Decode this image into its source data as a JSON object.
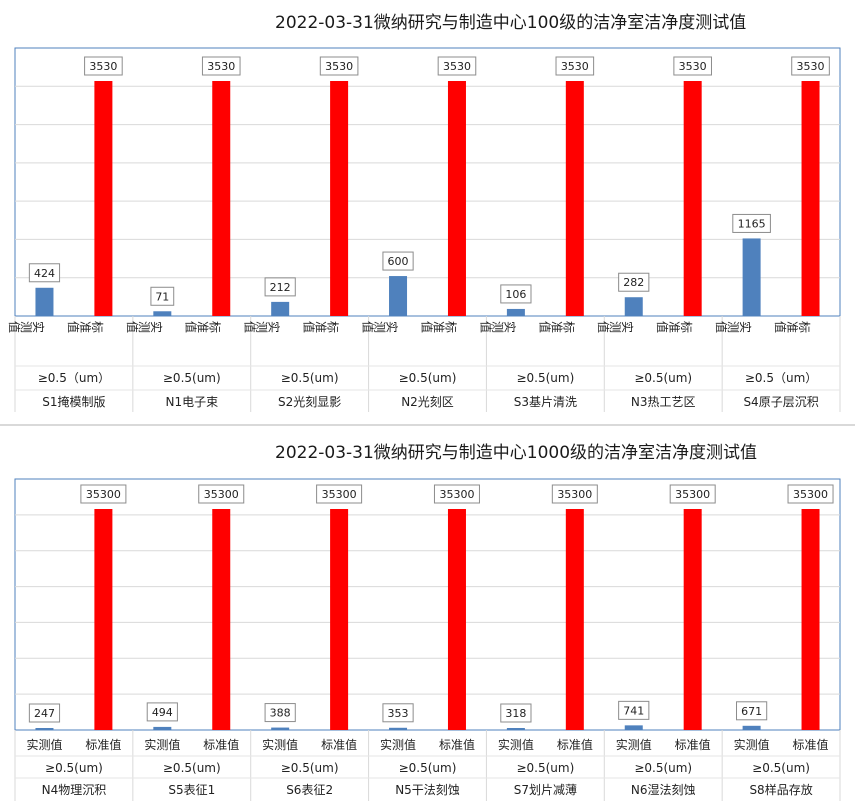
{
  "chart_data": [
    {
      "type": "bar",
      "title": "2022-03-31微纳研究与制造中心100级的洁净室洁净度测试值",
      "series_labels": [
        "实测值",
        "标准值"
      ],
      "ylim": [
        0,
        3530
      ],
      "grid": true,
      "groups": [
        {
          "name": "S1掩模制版",
          "size": "≥0.5（um）",
          "measured": 424,
          "standard": 3530
        },
        {
          "name": "N1电子束",
          "size": "≥0.5(um)",
          "measured": 71,
          "standard": 3530
        },
        {
          "name": "S2光刻显影",
          "size": "≥0.5(um)",
          "measured": 212,
          "standard": 3530
        },
        {
          "name": "N2光刻区",
          "size": "≥0.5(um)",
          "measured": 600,
          "standard": 3530
        },
        {
          "name": "S3基片清洗",
          "size": "≥0.5(um)",
          "measured": 106,
          "standard": 3530
        },
        {
          "name": "N3热工艺区",
          "size": "≥0.5(um)",
          "measured": 282,
          "standard": 3530
        },
        {
          "name": "S4原子层沉积",
          "size": "≥0.5（um）",
          "measured": 1165,
          "standard": 3530
        }
      ],
      "colors": {
        "measured": "#4f81bd",
        "standard": "#ff0000"
      }
    },
    {
      "type": "bar",
      "title": "2022-03-31微纳研究与制造中心1000级的洁净室洁净度测试值",
      "series_labels": [
        "实测值",
        "标准值"
      ],
      "ylim": [
        0,
        35300
      ],
      "grid": true,
      "groups": [
        {
          "name": "N4物理沉积",
          "size": "≥0.5(um)",
          "measured": 247,
          "standard": 35300
        },
        {
          "name": "S5表征1",
          "size": "≥0.5(um)",
          "measured": 494,
          "standard": 35300
        },
        {
          "name": "S6表征2",
          "size": "≥0.5(um)",
          "measured": 388,
          "standard": 35300
        },
        {
          "name": "N5干法刻蚀",
          "size": "≥0.5(um)",
          "measured": 353,
          "standard": 35300
        },
        {
          "name": "S7划片减薄",
          "size": "≥0.5(um)",
          "measured": 318,
          "standard": 35300
        },
        {
          "name": "N6湿法刻蚀",
          "size": "≥0.5(um)",
          "measured": 741,
          "standard": 35300
        },
        {
          "name": "S8样品存放",
          "size": "≥0.5(um)",
          "measured": 671,
          "standard": 35300
        }
      ],
      "colors": {
        "measured": "#4f81bd",
        "standard": "#ff0000"
      }
    }
  ]
}
